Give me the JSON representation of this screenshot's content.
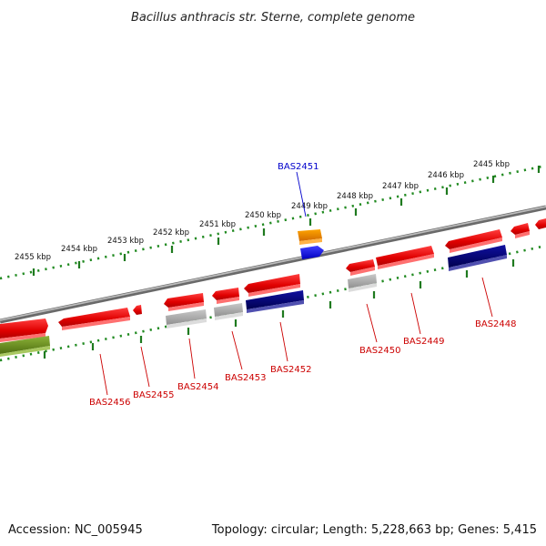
{
  "title": "Bacillus anthracis str. Sterne, complete genome",
  "footer": {
    "accession": "Accession: NC_005945",
    "summary": "Topology: circular; Length: 5,228,663 bp; Genes: 5,415"
  },
  "colors": {
    "forward_gene": "#ee1111",
    "pseudo_gene": "#a8a8a8",
    "navy_gene": "#0a0a78",
    "olive_gene": "#6b8e23",
    "orange_gene": "#ff8c00",
    "blue_gene": "#1a1aff",
    "label_red": "#cc0000",
    "label_blue": "#0000cc",
    "tick_green": "#228b22",
    "backbone": "#808080"
  },
  "kbp_labels": [
    "2455 kbp",
    "2454 kbp",
    "2453 kbp",
    "2452 kbp",
    "2451 kbp",
    "2450 kbp",
    "2449 kbp",
    "2448 kbp",
    "2447 kbp",
    "2446 kbp",
    "2445 kbp"
  ],
  "gene_labels": [
    "BAS2451",
    "BAS2456",
    "BAS2455",
    "BAS2454",
    "BAS2453",
    "BAS2452",
    "BAS2450",
    "BAS2449",
    "BAS2448"
  ]
}
